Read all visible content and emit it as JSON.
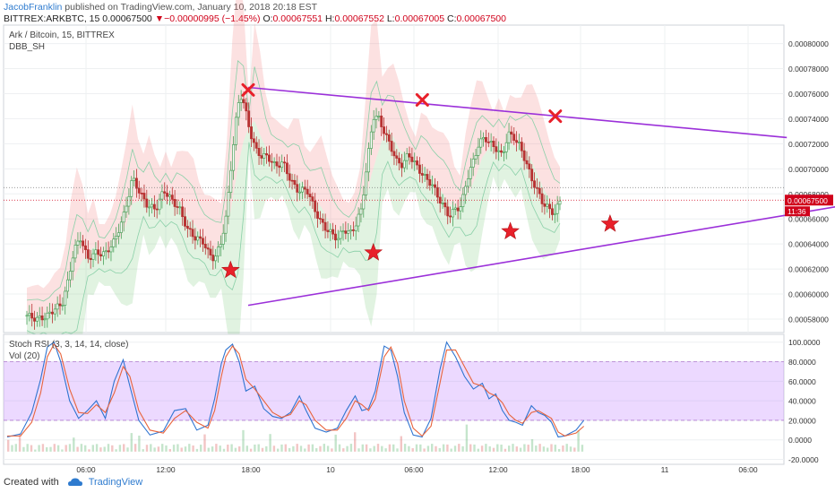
{
  "header": {
    "author": "JacobFranklin",
    "published_text": " published on TradingView.com, January 10, 2018 20:18 EST",
    "symbol_line": "BITTREX:ARKBTC, 15",
    "last": "0.00067500",
    "change": "−0.00000995 (−1.45%)",
    "o_label": "O:",
    "o_value": "0.00067551",
    "h_label": "H:",
    "h_value": "0.00067552",
    "l_label": "L:",
    "l_value": "0.00067005",
    "c_label": "C:",
    "c_value": "0.00067500"
  },
  "footer": {
    "created_with": "Created with",
    "brand": "TradingView"
  },
  "chart_data": {
    "type": "candlestick",
    "price_pane": {
      "title": "Ark / Bitcoin, 15, BITTREX",
      "indicator": "DBB_SH",
      "ylim": [
        0.00056925,
        0.00081475
      ],
      "y_ticks": [
        "0.00058000",
        "0.00060000",
        "0.00062000",
        "0.00064000",
        "0.00066000",
        "0.00068000",
        "0.00070000",
        "0.00072000",
        "0.00074000",
        "0.00076000",
        "0.00078000",
        "0.00080000"
      ],
      "last_price": {
        "label": "0.00067500",
        "value": 0.000675,
        "color": "#d0021b"
      },
      "countdown": "11:36",
      "dotted_level": 0.000685,
      "close_path": [
        [
          0,
          0.000583
        ],
        [
          10,
          0.00058
        ],
        [
          20,
          0.000582
        ],
        [
          28,
          0.000588
        ],
        [
          36,
          0.000592
        ],
        [
          42,
          0.00061
        ],
        [
          48,
          0.000635
        ],
        [
          55,
          0.000645
        ],
        [
          62,
          0.000628
        ],
        [
          70,
          0.000633
        ],
        [
          80,
          0.000632
        ],
        [
          90,
          0.000643
        ],
        [
          100,
          0.000665
        ],
        [
          108,
          0.000693
        ],
        [
          116,
          0.00068
        ],
        [
          124,
          0.00067
        ],
        [
          132,
          0.000668
        ],
        [
          140,
          0.000683
        ],
        [
          148,
          0.000675
        ],
        [
          156,
          0.000668
        ],
        [
          164,
          0.000652
        ],
        [
          172,
          0.000645
        ],
        [
          180,
          0.000642
        ],
        [
          186,
          0.000632
        ],
        [
          192,
          0.000628
        ],
        [
          198,
          0.00064
        ],
        [
          204,
          0.000663
        ],
        [
          210,
          0.000712
        ],
        [
          214,
          0.00074
        ],
        [
          218,
          0.00076
        ],
        [
          222,
          0.000752
        ],
        [
          228,
          0.00073
        ],
        [
          234,
          0.000715
        ],
        [
          240,
          0.00071
        ],
        [
          246,
          0.00071
        ],
        [
          254,
          0.000702
        ],
        [
          262,
          0.000705
        ],
        [
          270,
          0.00069
        ],
        [
          278,
          0.000682
        ],
        [
          286,
          0.000684
        ],
        [
          294,
          0.000668
        ],
        [
          300,
          0.000658
        ],
        [
          306,
          0.000652
        ],
        [
          312,
          0.000648
        ],
        [
          318,
          0.000644
        ],
        [
          324,
          0.000652
        ],
        [
          330,
          0.000648
        ],
        [
          336,
          0.000655
        ],
        [
          342,
          0.000668
        ],
        [
          348,
          0.000705
        ],
        [
          354,
          0.000742
        ],
        [
          360,
          0.00074
        ],
        [
          366,
          0.000728
        ],
        [
          372,
          0.000718
        ],
        [
          378,
          0.000706
        ],
        [
          384,
          0.000703
        ],
        [
          390,
          0.000712
        ],
        [
          396,
          0.000705
        ],
        [
          402,
          0.000698
        ],
        [
          408,
          0.000692
        ],
        [
          414,
          0.000688
        ],
        [
          420,
          0.000678
        ],
        [
          426,
          0.00067
        ],
        [
          432,
          0.000662
        ],
        [
          438,
          0.000668
        ],
        [
          444,
          0.00067
        ],
        [
          450,
          0.000692
        ],
        [
          456,
          0.000705
        ],
        [
          462,
          0.00072
        ],
        [
          468,
          0.000725
        ],
        [
          474,
          0.00072
        ],
        [
          480,
          0.000716
        ],
        [
          486,
          0.00071
        ],
        [
          492,
          0.000728
        ],
        [
          498,
          0.000725
        ],
        [
          504,
          0.000718
        ],
        [
          510,
          0.000706
        ],
        [
          516,
          0.000692
        ],
        [
          522,
          0.000682
        ],
        [
          528,
          0.000672
        ],
        [
          534,
          0.000668
        ],
        [
          540,
          0.000664
        ],
        [
          545,
          0.000675
        ]
      ],
      "annotations": {
        "trendlines": [
          {
            "name": "upper-trendline",
            "color": "#9b30d9",
            "from": [
              0,
              0.000765
            ],
            "to": [
              580,
              0.000725
            ]
          },
          {
            "name": "lower-trendline",
            "color": "#9b30d9",
            "from": [
              0,
              0.000591
            ],
            "to": [
              770,
              0.000688
            ]
          }
        ],
        "x_markers": [
          {
            "x": 0,
            "y": 0.000763
          },
          {
            "x": 178,
            "y": 0.000755
          },
          {
            "x": 314,
            "y": 0.000742
          }
        ],
        "star_markers": [
          {
            "x": -18,
            "y": 0.000619
          },
          {
            "x": 128,
            "y": 0.000633
          },
          {
            "x": 268,
            "y": 0.00065
          },
          {
            "x": 370,
            "y": 0.000656
          }
        ]
      }
    },
    "osc_pane": {
      "title": "Stoch RSI (3, 3, 14, 14, close)",
      "sub_title": "Vol (20)",
      "ylim": [
        -25,
        108
      ],
      "band": [
        20,
        80
      ],
      "y_ticks": [
        {
          "value": 100,
          "label": "100.0000"
        },
        {
          "value": 80,
          "label": "80.0000"
        },
        {
          "value": 60,
          "label": "60.0000"
        },
        {
          "value": 40,
          "label": "40.0000"
        },
        {
          "value": 20,
          "label": "20.0000"
        },
        {
          "value": 0,
          "label": "0.0000"
        },
        {
          "value": -20,
          "label": "-20.0000"
        }
      ],
      "series": [
        {
          "color": "#2f74d0",
          "values": [
            [
              0,
              3
            ],
            [
              12,
              6
            ],
            [
              22,
              28
            ],
            [
              30,
              62
            ],
            [
              36,
              95
            ],
            [
              42,
              100
            ],
            [
              48,
              80
            ],
            [
              56,
              40
            ],
            [
              64,
              22
            ],
            [
              72,
              30
            ],
            [
              80,
              40
            ],
            [
              88,
              22
            ],
            [
              96,
              60
            ],
            [
              104,
              82
            ],
            [
              110,
              55
            ],
            [
              118,
              20
            ],
            [
              128,
              5
            ],
            [
              140,
              9
            ],
            [
              150,
              30
            ],
            [
              160,
              32
            ],
            [
              170,
              10
            ],
            [
              180,
              15
            ],
            [
              186,
              42
            ],
            [
              192,
              78
            ],
            [
              196,
              92
            ],
            [
              202,
              98
            ],
            [
              208,
              80
            ],
            [
              214,
              50
            ],
            [
              222,
              55
            ],
            [
              230,
              32
            ],
            [
              238,
              24
            ],
            [
              246,
              22
            ],
            [
              254,
              28
            ],
            [
              262,
              45
            ],
            [
              268,
              30
            ],
            [
              276,
              12
            ],
            [
              286,
              8
            ],
            [
              296,
              12
            ],
            [
              304,
              30
            ],
            [
              312,
              45
            ],
            [
              318,
              30
            ],
            [
              324,
              32
            ],
            [
              330,
              50
            ],
            [
              338,
              96
            ],
            [
              344,
              92
            ],
            [
              350,
              65
            ],
            [
              356,
              28
            ],
            [
              364,
              5
            ],
            [
              372,
              3
            ],
            [
              380,
              22
            ],
            [
              388,
              72
            ],
            [
              394,
              100
            ],
            [
              402,
              85
            ],
            [
              410,
              65
            ],
            [
              418,
              52
            ],
            [
              426,
              58
            ],
            [
              432,
              42
            ],
            [
              438,
              47
            ],
            [
              444,
              30
            ],
            [
              450,
              20
            ],
            [
              456,
              18
            ],
            [
              462,
              15
            ],
            [
              470,
              35
            ],
            [
              476,
              28
            ],
            [
              482,
              25
            ],
            [
              488,
              18
            ],
            [
              494,
              3
            ],
            [
              500,
              4
            ],
            [
              510,
              10
            ],
            [
              517,
              20
            ]
          ]
        },
        {
          "color": "#e8643c",
          "values": [
            [
              0,
              4
            ],
            [
              12,
              4
            ],
            [
              22,
              18
            ],
            [
              30,
              48
            ],
            [
              36,
              85
            ],
            [
              42,
              98
            ],
            [
              48,
              88
            ],
            [
              56,
              52
            ],
            [
              64,
              28
            ],
            [
              72,
              27
            ],
            [
              80,
              36
            ],
            [
              88,
              28
            ],
            [
              96,
              48
            ],
            [
              104,
              75
            ],
            [
              110,
              65
            ],
            [
              118,
              30
            ],
            [
              128,
              10
            ],
            [
              140,
              7
            ],
            [
              150,
              22
            ],
            [
              160,
              30
            ],
            [
              170,
              18
            ],
            [
              180,
              12
            ],
            [
              186,
              30
            ],
            [
              192,
              65
            ],
            [
              196,
              85
            ],
            [
              202,
              96
            ],
            [
              208,
              88
            ],
            [
              214,
              62
            ],
            [
              222,
              52
            ],
            [
              230,
              40
            ],
            [
              238,
              28
            ],
            [
              246,
              23
            ],
            [
              254,
              26
            ],
            [
              262,
              40
            ],
            [
              268,
              36
            ],
            [
              276,
              20
            ],
            [
              286,
              10
            ],
            [
              296,
              10
            ],
            [
              304,
              22
            ],
            [
              312,
              40
            ],
            [
              318,
              36
            ],
            [
              324,
              30
            ],
            [
              330,
              42
            ],
            [
              338,
              85
            ],
            [
              344,
              95
            ],
            [
              350,
              78
            ],
            [
              356,
              40
            ],
            [
              364,
              12
            ],
            [
              372,
              4
            ],
            [
              380,
              14
            ],
            [
              388,
              58
            ],
            [
              394,
              92
            ],
            [
              402,
              92
            ],
            [
              410,
              75
            ],
            [
              418,
              58
            ],
            [
              426,
              55
            ],
            [
              432,
              48
            ],
            [
              438,
              45
            ],
            [
              444,
              38
            ],
            [
              450,
              26
            ],
            [
              456,
              20
            ],
            [
              462,
              17
            ],
            [
              470,
              28
            ],
            [
              476,
              30
            ],
            [
              482,
              26
            ],
            [
              488,
              22
            ],
            [
              494,
              8
            ],
            [
              500,
              4
            ],
            [
              510,
              7
            ],
            [
              517,
              14
            ]
          ]
        }
      ]
    },
    "x_axis": {
      "ticks": [
        {
          "label": "06:00",
          "x": 96
        },
        {
          "label": "12:00",
          "x": 185
        },
        {
          "label": "18:00",
          "x": 280
        },
        {
          "label": "10",
          "x": 369
        },
        {
          "label": "06:00",
          "x": 462
        },
        {
          "label": "12:00",
          "x": 556
        },
        {
          "label": "18:00",
          "x": 648
        },
        {
          "label": "11",
          "x": 742
        },
        {
          "label": "06:00",
          "x": 835
        }
      ]
    }
  }
}
